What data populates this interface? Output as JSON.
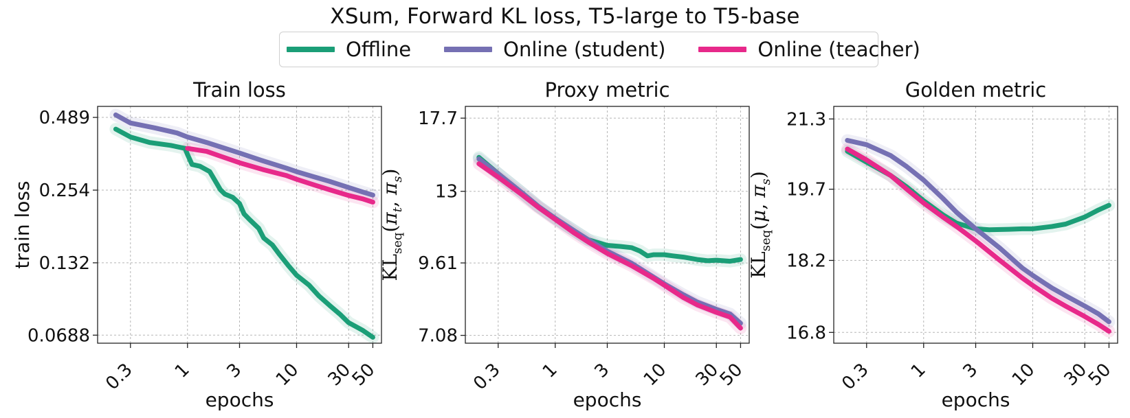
{
  "suptitle": "XSum, Forward KL loss, T5-large to T5-base",
  "legend": [
    {
      "name": "Offline",
      "color": "#1b9e77"
    },
    {
      "name": "Online (student)",
      "color": "#7570b3"
    },
    {
      "name": "Online (teacher)",
      "color": "#e7298a"
    }
  ],
  "chart_data": [
    {
      "type": "line",
      "title": "Train loss",
      "xlabel": "epochs",
      "ylabel": "train loss",
      "xscale": "log",
      "yscale": "log",
      "xlim": [
        0.15,
        60
      ],
      "ylim": [
        0.064,
        0.54
      ],
      "xticks": [
        0.3,
        1,
        3,
        10,
        30,
        50
      ],
      "xtick_labels": [
        "0.3",
        "1",
        "3",
        "10",
        "30",
        "50"
      ],
      "yticks": [
        0.489,
        0.254,
        0.132,
        0.0688
      ],
      "ytick_labels": [
        "0.489",
        "0.254",
        "0.132",
        "0.0688"
      ],
      "grid": true,
      "series": [
        {
          "name": "Offline",
          "color": "#1b9e77",
          "x": [
            0.22,
            0.3,
            0.45,
            0.7,
            0.95,
            1.0,
            1.1,
            1.3,
            1.6,
            1.9,
            2.0,
            2.2,
            2.6,
            3.0,
            3.3,
            3.7,
            4.5,
            5.0,
            6.0,
            7.0,
            8.5,
            10,
            13,
            16,
            20,
            25,
            30,
            40,
            50
          ],
          "y": [
            0.44,
            0.41,
            0.39,
            0.38,
            0.37,
            0.35,
            0.32,
            0.315,
            0.3,
            0.265,
            0.255,
            0.245,
            0.238,
            0.225,
            0.205,
            0.195,
            0.18,
            0.165,
            0.155,
            0.142,
            0.128,
            0.118,
            0.108,
            0.098,
            0.09,
            0.083,
            0.077,
            0.072,
            0.0675
          ]
        },
        {
          "name": "Online (student)",
          "color": "#7570b3",
          "x": [
            0.22,
            0.3,
            0.5,
            0.8,
            1.0,
            1.5,
            2.0,
            3.0,
            5.0,
            8.0,
            10,
            15,
            20,
            30,
            40,
            50
          ],
          "y": [
            0.5,
            0.465,
            0.445,
            0.425,
            0.41,
            0.39,
            0.375,
            0.355,
            0.33,
            0.31,
            0.3,
            0.285,
            0.275,
            0.26,
            0.25,
            0.243
          ]
        },
        {
          "name": "Online (teacher)",
          "color": "#e7298a",
          "x": [
            1.0,
            1.5,
            2.0,
            3.0,
            5.0,
            8.0,
            10,
            15,
            20,
            30,
            40,
            50
          ],
          "y": [
            0.37,
            0.36,
            0.345,
            0.325,
            0.305,
            0.29,
            0.28,
            0.265,
            0.255,
            0.242,
            0.235,
            0.228
          ]
        }
      ]
    },
    {
      "type": "line",
      "title": "Proxy metric",
      "xlabel": "epochs",
      "ylabel": "KL_seq(π_t, π_s)",
      "xscale": "log",
      "yscale": "log",
      "xlim": [
        0.15,
        60
      ],
      "ylim": [
        6.85,
        18.6
      ],
      "xticks": [
        0.3,
        1,
        3,
        10,
        30,
        50
      ],
      "xtick_labels": [
        "0.3",
        "1",
        "3",
        "10",
        "30",
        "50"
      ],
      "yticks": [
        17.7,
        13,
        9.61,
        7.08
      ],
      "ytick_labels": [
        "17.7",
        "13",
        "9.61",
        "7.08"
      ],
      "grid": true,
      "series": [
        {
          "name": "Offline",
          "color": "#1b9e77",
          "x": [
            0.2,
            0.3,
            0.5,
            0.7,
            1.0,
            1.5,
            2.0,
            3.0,
            4.0,
            5.0,
            6.0,
            7.0,
            8.0,
            10,
            12,
            15,
            20,
            25,
            30,
            40,
            50
          ],
          "y": [
            15.0,
            14.0,
            12.9,
            12.2,
            11.6,
            11.0,
            10.6,
            10.35,
            10.3,
            10.25,
            10.1,
            9.9,
            9.95,
            9.95,
            9.9,
            9.85,
            9.75,
            9.7,
            9.72,
            9.68,
            9.75
          ]
        },
        {
          "name": "Online (student)",
          "color": "#7570b3",
          "x": [
            0.2,
            0.3,
            0.5,
            0.7,
            1.0,
            1.5,
            2.0,
            3.0,
            5.0,
            8.0,
            10,
            15,
            20,
            30,
            40,
            50
          ],
          "y": [
            14.9,
            14.0,
            12.9,
            12.2,
            11.6,
            11.0,
            10.6,
            10.1,
            9.6,
            9.05,
            8.8,
            8.4,
            8.15,
            7.9,
            7.75,
            7.45
          ]
        },
        {
          "name": "Online (teacher)",
          "color": "#e7298a",
          "x": [
            0.2,
            0.3,
            0.5,
            0.7,
            1.0,
            1.5,
            2.0,
            3.0,
            5.0,
            8.0,
            10,
            15,
            20,
            30,
            40,
            50
          ],
          "y": [
            14.6,
            13.8,
            12.8,
            12.15,
            11.55,
            10.9,
            10.5,
            10.0,
            9.5,
            9.0,
            8.75,
            8.3,
            8.05,
            7.8,
            7.65,
            7.3
          ]
        }
      ]
    },
    {
      "type": "line",
      "title": "Golden metric",
      "xlabel": "epochs",
      "ylabel": "KL_seq(μ, π_s)",
      "xscale": "log",
      "yscale": "log",
      "xlim": [
        0.15,
        60
      ],
      "ylim": [
        16.6,
        21.6
      ],
      "xticks": [
        0.3,
        1,
        3,
        10,
        30,
        50
      ],
      "xtick_labels": [
        "0.3",
        "1",
        "3",
        "10",
        "30",
        "50"
      ],
      "yticks": [
        21.3,
        19.7,
        18.2,
        16.8
      ],
      "ytick_labels": [
        "21.3",
        "19.7",
        "18.2",
        "16.8"
      ],
      "grid": true,
      "series": [
        {
          "name": "Offline",
          "color": "#1b9e77",
          "x": [
            0.2,
            0.3,
            0.5,
            0.7,
            1.0,
            1.5,
            2.0,
            3.0,
            4.0,
            6.0,
            8.0,
            10,
            15,
            20,
            30,
            40,
            50
          ],
          "y": [
            20.55,
            20.3,
            20.0,
            19.75,
            19.45,
            19.15,
            18.97,
            18.85,
            18.83,
            18.84,
            18.85,
            18.85,
            18.9,
            18.95,
            19.1,
            19.25,
            19.35
          ]
        },
        {
          "name": "Online (student)",
          "color": "#7570b3",
          "x": [
            0.2,
            0.3,
            0.5,
            0.7,
            1.0,
            1.5,
            2.0,
            3.0,
            5.0,
            8.0,
            10,
            15,
            20,
            30,
            40,
            50
          ],
          "y": [
            20.8,
            20.7,
            20.45,
            20.2,
            19.9,
            19.5,
            19.2,
            18.85,
            18.45,
            18.05,
            17.9,
            17.65,
            17.5,
            17.3,
            17.15,
            17.0
          ]
        },
        {
          "name": "Online (teacher)",
          "color": "#e7298a",
          "x": [
            0.2,
            0.3,
            0.5,
            0.7,
            1.0,
            1.5,
            2.0,
            3.0,
            5.0,
            8.0,
            10,
            15,
            20,
            30,
            40,
            50
          ],
          "y": [
            20.6,
            20.35,
            20.0,
            19.7,
            19.4,
            19.1,
            18.9,
            18.6,
            18.2,
            17.85,
            17.7,
            17.45,
            17.3,
            17.1,
            16.95,
            16.82
          ]
        }
      ]
    }
  ]
}
